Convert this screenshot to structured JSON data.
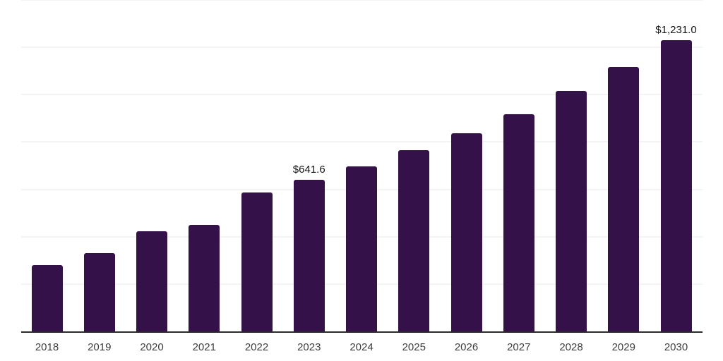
{
  "chart_data": {
    "type": "bar",
    "title": "",
    "xlabel": "",
    "ylabel": "",
    "categories": [
      "2018",
      "2019",
      "2020",
      "2021",
      "2022",
      "2023",
      "2024",
      "2025",
      "2026",
      "2027",
      "2028",
      "2029",
      "2030"
    ],
    "values": [
      280,
      331,
      423,
      450,
      587,
      641.6,
      698,
      766,
      838,
      918,
      1017,
      1118,
      1231
    ],
    "data_labels": [
      "",
      "",
      "",
      "",
      "",
      "$641.6",
      "",
      "",
      "",
      "",
      "",
      "",
      "$1,231.0"
    ],
    "ylim": [
      0,
      1400
    ],
    "gridline_step": 200,
    "grid": true,
    "legend": false,
    "y_axis_labels_visible": false
  },
  "style": {
    "bar_color": "#351149",
    "grid_color": "#f4f4f4",
    "axis_color": "#2b2b2b",
    "tick_label_color": "#3d3d3d",
    "data_label_color": "#161616",
    "background": "#ffffff"
  }
}
